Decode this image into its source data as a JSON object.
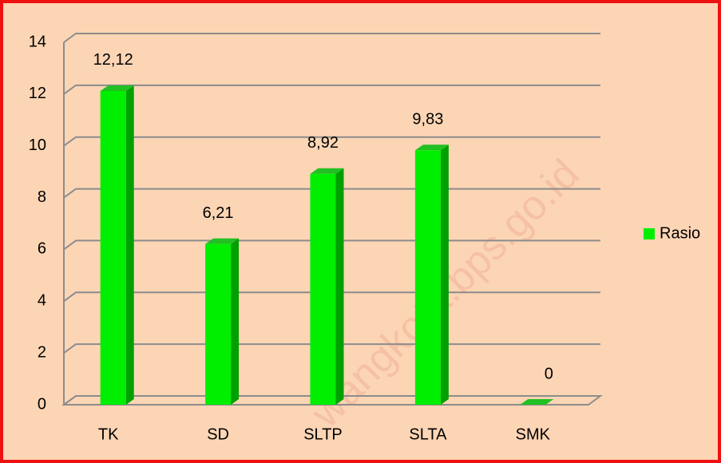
{
  "chart_data": {
    "type": "bar3d",
    "categories": [
      "TK",
      "SD",
      "SLTP",
      "SLTA",
      "SMK"
    ],
    "series": [
      {
        "name": "Rasio",
        "color": "#00ee00",
        "values": [
          12.12,
          6.21,
          8.92,
          9.83,
          0
        ],
        "value_labels": [
          "12,12",
          "6,21",
          "8,92",
          "9,83",
          "0"
        ]
      }
    ],
    "ylim": [
      0,
      14
    ],
    "yticks": [
      0,
      2,
      4,
      6,
      8,
      10,
      12,
      14
    ],
    "grid": true,
    "legend": "right",
    "watermark": "wangkota.bps.go.id"
  }
}
